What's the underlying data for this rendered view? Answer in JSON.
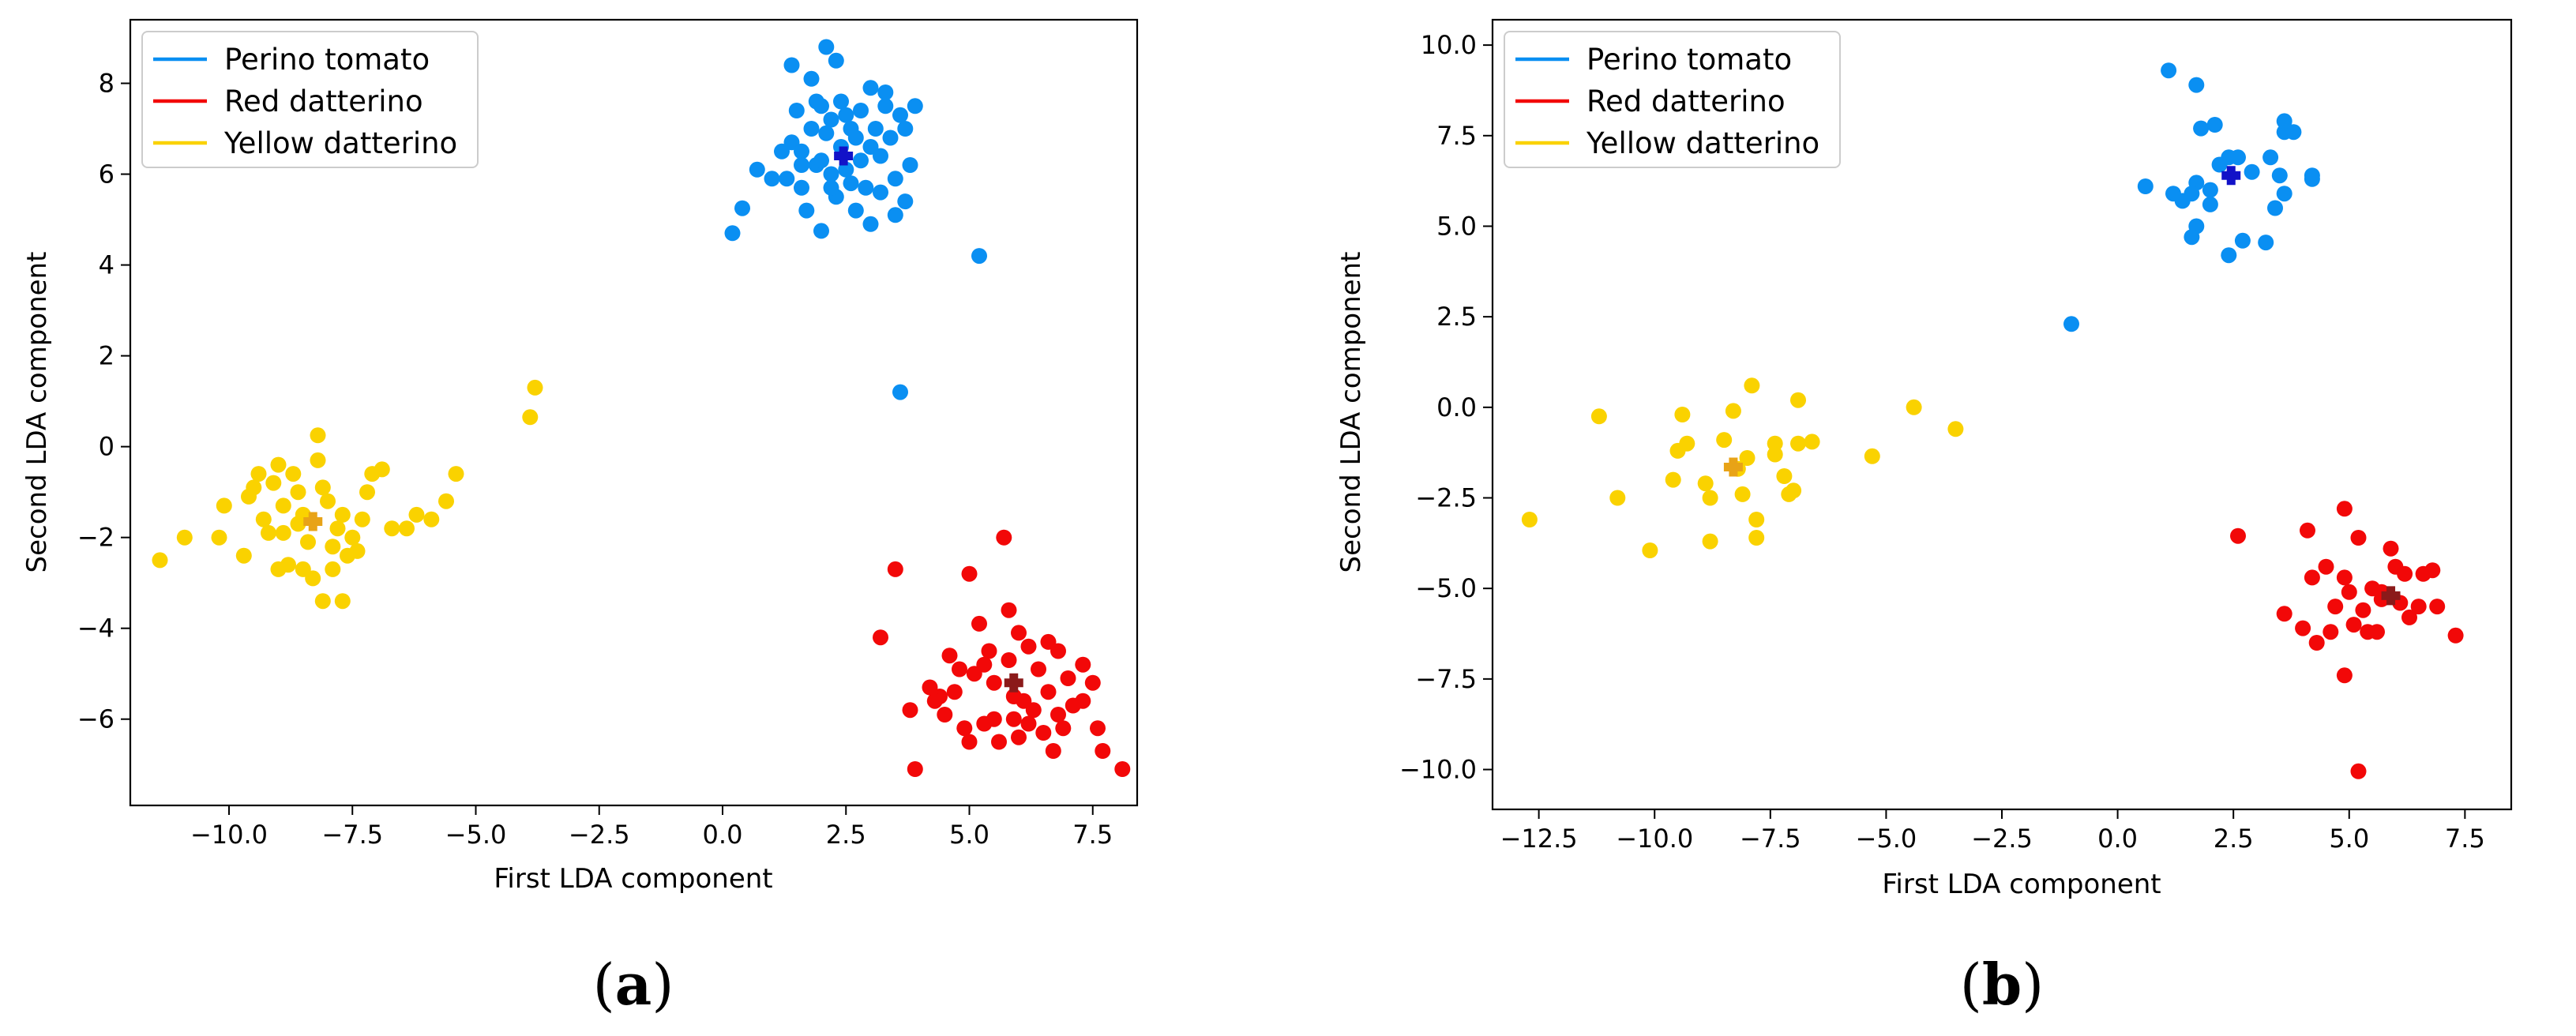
{
  "chart_data": [
    {
      "type": "scatter",
      "panel": "(a)",
      "panel_letter": "a",
      "xlabel": "First LDA component",
      "ylabel": "Second LDA component",
      "xlim": [
        -12.0,
        8.4
      ],
      "ylim": [
        -7.9,
        9.4
      ],
      "xticks": [
        -10.0,
        -7.5,
        -5.0,
        -2.5,
        0.0,
        2.5,
        5.0,
        7.5
      ],
      "xtick_labels": [
        "−10.0",
        "−7.5",
        "−5.0",
        "−2.5",
        "0.0",
        "2.5",
        "5.0",
        "7.5"
      ],
      "yticks": [
        -6,
        -4,
        -2,
        0,
        2,
        4,
        6,
        8
      ],
      "ytick_labels": [
        "−6",
        "−4",
        "−2",
        "0",
        "2",
        "4",
        "6",
        "8"
      ],
      "legend_position": "top-left",
      "series": [
        {
          "name": "Perino tomato",
          "color": "#0a8ff2",
          "centroid": [
            2.45,
            6.4
          ],
          "centroid_color": "#1212c8",
          "points": [
            [
              0.2,
              4.7
            ],
            [
              0.4,
              5.25
            ],
            [
              0.7,
              6.1
            ],
            [
              1.0,
              5.9
            ],
            [
              1.2,
              6.5
            ],
            [
              1.4,
              6.7
            ],
            [
              1.6,
              6.5
            ],
            [
              1.4,
              8.4
            ],
            [
              1.8,
              8.1
            ],
            [
              2.1,
              8.8
            ],
            [
              2.3,
              8.5
            ],
            [
              1.9,
              7.6
            ],
            [
              2.2,
              7.2
            ],
            [
              2.6,
              7.0
            ],
            [
              3.0,
              7.9
            ],
            [
              3.3,
              7.8
            ],
            [
              3.6,
              7.3
            ],
            [
              3.9,
              7.5
            ],
            [
              3.7,
              7.0
            ],
            [
              3.4,
              6.8
            ],
            [
              3.2,
              6.4
            ],
            [
              3.5,
              5.9
            ],
            [
              3.7,
              5.4
            ],
            [
              3.5,
              5.1
            ],
            [
              3.2,
              5.6
            ],
            [
              3.0,
              4.9
            ],
            [
              2.7,
              5.2
            ],
            [
              2.3,
              5.5
            ],
            [
              2.0,
              4.75
            ],
            [
              1.7,
              5.2
            ],
            [
              1.6,
              5.7
            ],
            [
              1.3,
              5.9
            ],
            [
              1.9,
              6.2
            ],
            [
              2.2,
              6.0
            ],
            [
              2.5,
              6.1
            ],
            [
              2.8,
              6.3
            ],
            [
              3.0,
              6.6
            ],
            [
              2.7,
              6.8
            ],
            [
              2.4,
              6.6
            ],
            [
              2.1,
              6.9
            ],
            [
              1.8,
              7.0
            ],
            [
              1.5,
              7.4
            ],
            [
              2.0,
              7.5
            ],
            [
              2.4,
              7.6
            ],
            [
              2.8,
              7.4
            ],
            [
              3.1,
              7.0
            ],
            [
              3.3,
              7.5
            ],
            [
              2.2,
              5.7
            ],
            [
              2.6,
              5.8
            ],
            [
              2.9,
              5.7
            ],
            [
              1.6,
              6.2
            ],
            [
              3.8,
              6.2
            ],
            [
              2.0,
              6.3
            ],
            [
              2.5,
              7.3
            ],
            [
              5.2,
              4.2
            ],
            [
              3.6,
              1.2
            ]
          ]
        },
        {
          "name": "Red datterino",
          "color": "#f20808",
          "centroid": [
            5.9,
            -5.2
          ],
          "centroid_color": "#8b1a1a",
          "points": [
            [
              3.2,
              -4.2
            ],
            [
              3.5,
              -2.7
            ],
            [
              3.8,
              -5.8
            ],
            [
              3.9,
              -7.1
            ],
            [
              4.2,
              -5.3
            ],
            [
              4.4,
              -5.5
            ],
            [
              4.6,
              -4.6
            ],
            [
              4.8,
              -4.9
            ],
            [
              5.0,
              -2.8
            ],
            [
              5.2,
              -3.9
            ],
            [
              5.4,
              -4.5
            ],
            [
              5.7,
              -2.0
            ],
            [
              5.8,
              -3.6
            ],
            [
              5.5,
              -5.2
            ],
            [
              5.3,
              -6.1
            ],
            [
              5.6,
              -6.5
            ],
            [
              5.9,
              -6.0
            ],
            [
              6.1,
              -5.6
            ],
            [
              6.3,
              -5.8
            ],
            [
              6.5,
              -6.3
            ],
            [
              6.7,
              -6.7
            ],
            [
              6.9,
              -6.2
            ],
            [
              7.1,
              -5.7
            ],
            [
              7.3,
              -4.8
            ],
            [
              7.5,
              -5.2
            ],
            [
              7.6,
              -6.2
            ],
            [
              7.7,
              -6.7
            ],
            [
              8.1,
              -7.1
            ],
            [
              6.6,
              -4.3
            ],
            [
              6.8,
              -4.5
            ],
            [
              6.4,
              -4.9
            ],
            [
              6.0,
              -4.1
            ],
            [
              6.2,
              -4.4
            ],
            [
              5.8,
              -4.7
            ],
            [
              5.1,
              -5.0
            ],
            [
              4.7,
              -5.4
            ],
            [
              4.3,
              -5.6
            ],
            [
              4.9,
              -6.2
            ],
            [
              5.0,
              -6.5
            ],
            [
              5.5,
              -6.0
            ],
            [
              6.0,
              -6.4
            ],
            [
              6.6,
              -5.4
            ],
            [
              7.0,
              -5.1
            ],
            [
              7.3,
              -5.6
            ],
            [
              4.5,
              -5.9
            ],
            [
              5.9,
              -5.5
            ],
            [
              6.2,
              -6.1
            ],
            [
              6.8,
              -5.9
            ],
            [
              5.3,
              -4.8
            ]
          ]
        },
        {
          "name": "Yellow datterino",
          "color": "#fad200",
          "centroid": [
            -8.3,
            -1.65
          ],
          "centroid_color": "#e8a317",
          "points": [
            [
              -11.4,
              -2.5
            ],
            [
              -10.9,
              -2.0
            ],
            [
              -10.2,
              -2.0
            ],
            [
              -10.1,
              -1.3
            ],
            [
              -9.7,
              -2.4
            ],
            [
              -9.6,
              -1.1
            ],
            [
              -9.5,
              -0.9
            ],
            [
              -9.4,
              -0.6
            ],
            [
              -9.3,
              -1.6
            ],
            [
              -9.1,
              -0.8
            ],
            [
              -9.0,
              -0.4
            ],
            [
              -8.9,
              -1.9
            ],
            [
              -8.8,
              -2.6
            ],
            [
              -8.7,
              -0.6
            ],
            [
              -8.6,
              -1.0
            ],
            [
              -8.5,
              -1.5
            ],
            [
              -8.4,
              -2.1
            ],
            [
              -8.3,
              -2.9
            ],
            [
              -8.2,
              -0.3
            ],
            [
              -8.1,
              -0.9
            ],
            [
              -8.0,
              -1.2
            ],
            [
              -8.2,
              0.25
            ],
            [
              -7.9,
              -2.2
            ],
            [
              -7.8,
              -1.8
            ],
            [
              -7.7,
              -1.5
            ],
            [
              -7.6,
              -2.4
            ],
            [
              -7.5,
              -2.0
            ],
            [
              -7.4,
              -2.3
            ],
            [
              -7.3,
              -1.6
            ],
            [
              -7.2,
              -1.0
            ],
            [
              -7.1,
              -0.6
            ],
            [
              -6.9,
              -0.5
            ],
            [
              -6.7,
              -1.8
            ],
            [
              -6.4,
              -1.8
            ],
            [
              -6.2,
              -1.5
            ],
            [
              -5.9,
              -1.6
            ],
            [
              -5.6,
              -1.2
            ],
            [
              -5.4,
              -0.6
            ],
            [
              -8.1,
              -3.4
            ],
            [
              -7.7,
              -3.4
            ],
            [
              -8.5,
              -2.7
            ],
            [
              -9.0,
              -2.7
            ],
            [
              -8.6,
              -1.7
            ],
            [
              -8.9,
              -1.3
            ],
            [
              -9.2,
              -1.9
            ],
            [
              -7.9,
              -2.7
            ],
            [
              -3.9,
              0.65
            ],
            [
              -3.8,
              1.3
            ]
          ]
        }
      ]
    },
    {
      "type": "scatter",
      "panel": "(b)",
      "panel_letter": "b",
      "xlabel": "First LDA component",
      "ylabel": "Second LDA component",
      "xlim": [
        -13.5,
        8.5
      ],
      "ylim": [
        -11.1,
        10.7
      ],
      "xticks": [
        -12.5,
        -10.0,
        -7.5,
        -5.0,
        -2.5,
        0.0,
        2.5,
        5.0,
        7.5
      ],
      "xtick_labels": [
        "−12.5",
        "−10.0",
        "−7.5",
        "−5.0",
        "−2.5",
        "0.0",
        "2.5",
        "5.0",
        "7.5"
      ],
      "yticks": [
        -10.0,
        -7.5,
        -5.0,
        -2.5,
        0.0,
        2.5,
        5.0,
        7.5,
        10.0
      ],
      "ytick_labels": [
        "−10.0",
        "−7.5",
        "−5.0",
        "−2.5",
        "0.0",
        "2.5",
        "5.0",
        "7.5",
        "10.0"
      ],
      "legend_position": "top-left",
      "series": [
        {
          "name": "Perino tomato",
          "color": "#0a8ff2",
          "centroid": [
            2.45,
            6.4
          ],
          "centroid_color": "#1212c8",
          "points": [
            [
              1.1,
              9.3
            ],
            [
              1.7,
              8.9
            ],
            [
              1.8,
              7.7
            ],
            [
              2.1,
              7.8
            ],
            [
              2.4,
              6.9
            ],
            [
              2.6,
              6.9
            ],
            [
              2.2,
              6.7
            ],
            [
              1.7,
              6.2
            ],
            [
              1.6,
              5.9
            ],
            [
              2.0,
              6.0
            ],
            [
              1.4,
              5.7
            ],
            [
              1.7,
              5.0
            ],
            [
              1.6,
              4.7
            ],
            [
              2.4,
              4.2
            ],
            [
              2.7,
              4.6
            ],
            [
              3.2,
              4.55
            ],
            [
              3.4,
              5.5
            ],
            [
              3.6,
              5.9
            ],
            [
              3.5,
              6.4
            ],
            [
              3.3,
              6.9
            ],
            [
              3.6,
              7.6
            ],
            [
              3.8,
              7.6
            ],
            [
              4.2,
              6.4
            ],
            [
              4.2,
              6.3
            ],
            [
              3.6,
              7.9
            ],
            [
              0.6,
              6.1
            ],
            [
              2.9,
              6.5
            ],
            [
              2.0,
              5.6
            ],
            [
              1.2,
              5.9
            ],
            [
              -1.0,
              2.3
            ]
          ]
        },
        {
          "name": "Red datterino",
          "color": "#f20808",
          "centroid": [
            5.9,
            -5.2
          ],
          "centroid_color": "#8b1a1a",
          "points": [
            [
              2.6,
              -3.55
            ],
            [
              3.6,
              -5.7
            ],
            [
              4.1,
              -3.4
            ],
            [
              4.2,
              -4.7
            ],
            [
              4.3,
              -6.5
            ],
            [
              4.0,
              -6.1
            ],
            [
              4.5,
              -4.4
            ],
            [
              4.6,
              -6.2
            ],
            [
              4.7,
              -5.5
            ],
            [
              4.9,
              -2.8
            ],
            [
              4.9,
              -4.7
            ],
            [
              5.0,
              -5.1
            ],
            [
              5.1,
              -6.0
            ],
            [
              5.2,
              -3.6
            ],
            [
              5.3,
              -5.6
            ],
            [
              5.4,
              -6.2
            ],
            [
              5.5,
              -5.0
            ],
            [
              5.6,
              -6.2
            ],
            [
              5.7,
              -5.1
            ],
            [
              5.9,
              -3.9
            ],
            [
              6.0,
              -4.4
            ],
            [
              6.1,
              -5.4
            ],
            [
              6.2,
              -4.6
            ],
            [
              6.3,
              -5.8
            ],
            [
              6.5,
              -5.5
            ],
            [
              6.6,
              -4.6
            ],
            [
              6.8,
              -4.5
            ],
            [
              6.9,
              -5.5
            ],
            [
              7.3,
              -6.3
            ],
            [
              4.9,
              -7.4
            ],
            [
              5.2,
              -10.05
            ],
            [
              5.7,
              -5.3
            ]
          ]
        },
        {
          "name": "Yellow datterino",
          "color": "#fad200",
          "centroid": [
            -8.3,
            -1.65
          ],
          "centroid_color": "#e8a317",
          "points": [
            [
              -12.7,
              -3.1
            ],
            [
              -11.2,
              -0.25
            ],
            [
              -10.8,
              -2.5
            ],
            [
              -10.1,
              -3.95
            ],
            [
              -9.6,
              -2.0
            ],
            [
              -9.5,
              -1.2
            ],
            [
              -9.4,
              -0.2
            ],
            [
              -9.3,
              -1.0
            ],
            [
              -8.8,
              -2.5
            ],
            [
              -8.8,
              -3.7
            ],
            [
              -8.5,
              -0.9
            ],
            [
              -8.3,
              -0.1
            ],
            [
              -8.1,
              -2.4
            ],
            [
              -8.0,
              -1.4
            ],
            [
              -7.9,
              0.6
            ],
            [
              -7.8,
              -3.1
            ],
            [
              -7.8,
              -3.6
            ],
            [
              -7.4,
              -1.3
            ],
            [
              -7.4,
              -1.0
            ],
            [
              -7.2,
              -1.9
            ],
            [
              -7.1,
              -2.4
            ],
            [
              -6.9,
              -1.0
            ],
            [
              -6.9,
              0.2
            ],
            [
              -6.6,
              -0.95
            ],
            [
              -5.3,
              -1.35
            ],
            [
              -4.4,
              0.0
            ],
            [
              -3.5,
              -0.6
            ],
            [
              -8.9,
              -2.1
            ],
            [
              -8.2,
              -1.7
            ],
            [
              -7.0,
              -2.3
            ]
          ]
        }
      ]
    }
  ]
}
